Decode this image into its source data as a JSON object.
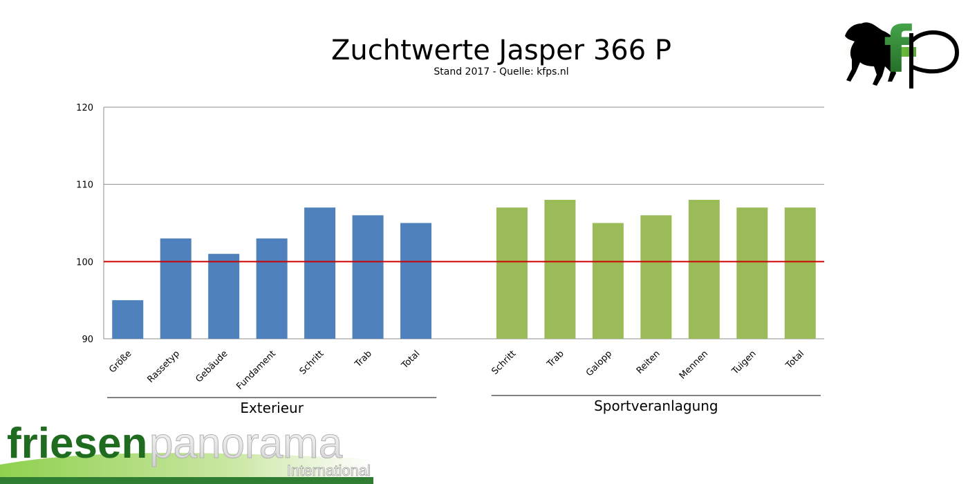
{
  "chart_data": {
    "type": "bar",
    "title": "Zuchtwerte Jasper 366 P",
    "subtitle": "Stand 2017 - Quelle: kfps.nl",
    "ylim": [
      90,
      120
    ],
    "yticks": [
      90,
      100,
      110,
      120
    ],
    "grid": true,
    "reference_line": {
      "value": 100,
      "color": "#cc0000"
    },
    "groups": [
      {
        "name": "Exterieur",
        "color": "#4f81bd",
        "categories": [
          "Größe",
          "Rassetyp",
          "Gebäude",
          "Fundament",
          "Schritt",
          "Trab",
          "Total"
        ],
        "values": [
          95,
          103,
          101,
          103,
          107,
          106,
          105
        ]
      },
      {
        "name": "Sportveranlagung",
        "color": "#9bbb59",
        "categories": [
          "Schritt",
          "Trab",
          "Galopp",
          "Reiten",
          "Mennen",
          "Tuigen",
          "Total"
        ],
        "values": [
          107,
          108,
          105,
          106,
          108,
          107,
          107
        ]
      }
    ]
  },
  "branding": {
    "top_logo_text": "fp",
    "bottom_logo_word1": "friesen",
    "bottom_logo_word2": "panorama",
    "bottom_logo_word3": "International",
    "green_dark": "#2e7d32",
    "green_light": "#8fd14f"
  }
}
